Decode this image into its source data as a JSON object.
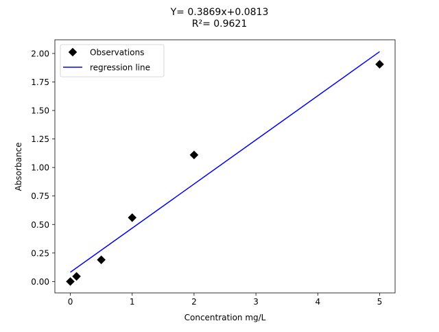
{
  "chart_data": {
    "type": "scatter",
    "title_line1": "Y= 0.3869x+0.0813",
    "title_line2": "R²= 0.9621",
    "xlabel": "Concentration mg/L",
    "ylabel": "Absorbance",
    "xlim": [
      -0.25,
      5.25
    ],
    "ylim": [
      -0.1,
      2.12
    ],
    "x_ticks": [
      0,
      1,
      2,
      3,
      4,
      5
    ],
    "x_tick_labels": [
      "0",
      "1",
      "2",
      "3",
      "4",
      "5"
    ],
    "y_ticks": [
      0,
      0.25,
      0.5,
      0.75,
      1.0,
      1.25,
      1.5,
      1.75,
      2.0
    ],
    "y_tick_labels": [
      "0.00",
      "0.25",
      "0.50",
      "0.75",
      "1.00",
      "1.25",
      "1.50",
      "1.75",
      "2.00"
    ],
    "grid": false,
    "legend_position": "top-left",
    "series": [
      {
        "name": "Observations",
        "kind": "points",
        "marker": "diamond",
        "color": "#000000",
        "x": [
          0,
          0.1,
          0.5,
          1,
          2,
          5
        ],
        "y": [
          0.0,
          0.045,
          0.19,
          0.56,
          1.11,
          1.905
        ]
      },
      {
        "name": "regression line",
        "kind": "line",
        "color": "#0000ff",
        "x": [
          0,
          5
        ],
        "y": [
          0.0813,
          2.0158
        ]
      }
    ]
  }
}
